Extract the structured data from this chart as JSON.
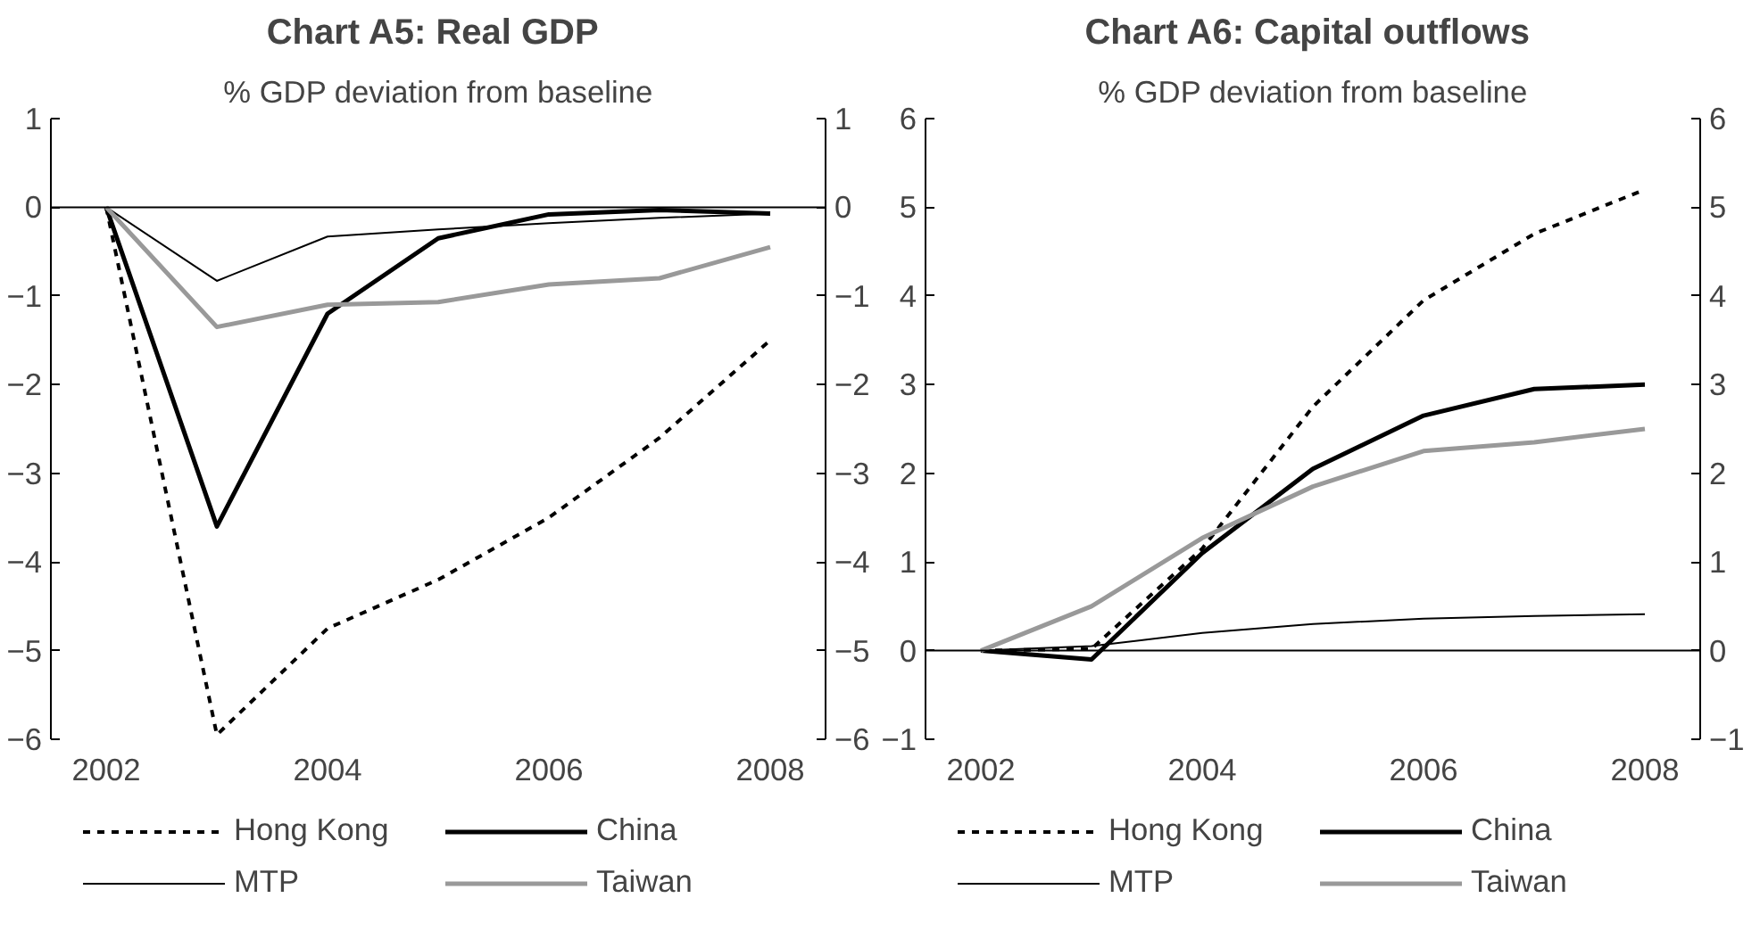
{
  "chart_data": [
    {
      "type": "line",
      "title": "Chart A5:  Real GDP",
      "subtitle": "% GDP deviation from baseline",
      "x": [
        2002,
        2003,
        2004,
        2005,
        2006,
        2007,
        2008
      ],
      "series": [
        {
          "name": "Hong Kong",
          "color": "#000000",
          "line_style": "dashed",
          "values": [
            0,
            -5.95,
            -4.75,
            -4.2,
            -3.5,
            -2.6,
            -1.5
          ]
        },
        {
          "name": "China",
          "color": "#000000",
          "values": [
            0,
            -3.6,
            -1.2,
            -0.35,
            -0.08,
            -0.03,
            -0.07
          ]
        },
        {
          "name": "MTP",
          "color": "#000000",
          "values": [
            0,
            -0.83,
            -0.33,
            -0.25,
            -0.18,
            -0.12,
            -0.07
          ]
        },
        {
          "name": "Taiwan",
          "color": "#999999",
          "values": [
            0,
            -1.35,
            -1.1,
            -1.07,
            -0.87,
            -0.8,
            -0.45
          ]
        }
      ],
      "xlim": [
        2001.5,
        2008.5
      ],
      "xticks": [
        2002,
        2004,
        2006,
        2008
      ],
      "ylim": [
        -6,
        1
      ],
      "yticks": [
        -6,
        -5,
        -4,
        -3,
        -2,
        -1,
        0,
        1
      ],
      "y2lim": [
        -6,
        1
      ],
      "y2ticks": [
        -6,
        -5,
        -4,
        -3,
        -2,
        -1,
        0,
        1
      ],
      "ref_lines": [
        {
          "axis": "y",
          "value": 0,
          "color": "#000000"
        }
      ],
      "grid": false,
      "legend": "bottom",
      "marker": "none",
      "line_style": "solid"
    },
    {
      "type": "line",
      "title": "Chart A6:  Capital outflows",
      "subtitle": "% GDP deviation from baseline",
      "x": [
        2002,
        2003,
        2004,
        2005,
        2006,
        2007,
        2008
      ],
      "series": [
        {
          "name": "Hong Kong",
          "color": "#000000",
          "line_style": "dashed",
          "values": [
            0,
            0.02,
            1.15,
            2.75,
            3.95,
            4.7,
            5.2
          ]
        },
        {
          "name": "China",
          "color": "#000000",
          "values": [
            0,
            -0.1,
            1.1,
            2.05,
            2.65,
            2.95,
            3.0
          ]
        },
        {
          "name": "MTP",
          "color": "#000000",
          "values": [
            0,
            0.05,
            0.2,
            0.3,
            0.36,
            0.39,
            0.41
          ]
        },
        {
          "name": "Taiwan",
          "color": "#999999",
          "values": [
            0,
            0.5,
            1.27,
            1.85,
            2.25,
            2.35,
            2.5
          ]
        }
      ],
      "xlim": [
        2001.5,
        2008.5
      ],
      "xticks": [
        2002,
        2004,
        2006,
        2008
      ],
      "ylim": [
        -1,
        6
      ],
      "yticks": [
        -1,
        0,
        1,
        2,
        3,
        4,
        5,
        6
      ],
      "y2lim": [
        -1,
        6
      ],
      "y2ticks": [
        -1,
        0,
        1,
        2,
        3,
        4,
        5,
        6
      ],
      "ref_lines": [
        {
          "axis": "y",
          "value": 0,
          "color": "#000000"
        }
      ],
      "grid": false,
      "legend": "bottom",
      "marker": "none",
      "line_style": "solid"
    }
  ]
}
